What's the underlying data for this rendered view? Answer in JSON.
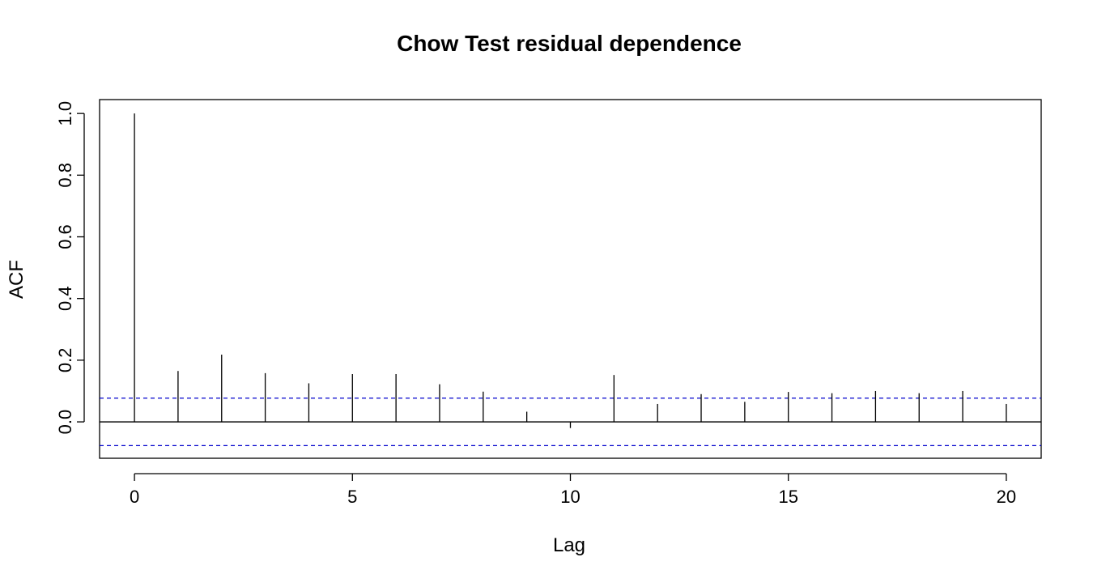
{
  "chart_data": {
    "type": "bar",
    "title": "Chow Test residual dependence",
    "xlabel": "Lag",
    "ylabel": "ACF",
    "x": [
      0,
      1,
      2,
      3,
      4,
      5,
      6,
      7,
      8,
      9,
      10,
      11,
      12,
      13,
      14,
      15,
      16,
      17,
      18,
      19,
      20
    ],
    "values": [
      1.0,
      0.165,
      0.218,
      0.158,
      0.125,
      0.155,
      0.155,
      0.122,
      0.098,
      0.033,
      -0.02,
      0.152,
      0.058,
      0.09,
      0.065,
      0.097,
      0.093,
      0.1,
      0.093,
      0.1,
      0.058
    ],
    "xlim": [
      -0.8,
      20.8
    ],
    "ylim": [
      -0.118,
      1.045
    ],
    "x_ticks": [
      0,
      5,
      10,
      15,
      20
    ],
    "x_tick_labels": [
      "0",
      "5",
      "10",
      "15",
      "20"
    ],
    "y_ticks": [
      0.0,
      0.2,
      0.4,
      0.6,
      0.8,
      1.0
    ],
    "y_tick_labels": [
      "0.0",
      "0.2",
      "0.4",
      "0.6",
      "0.8",
      "1.0"
    ],
    "confidence_bounds": [
      0.077,
      -0.077
    ],
    "confidence_color": "#0000cc",
    "bar_color": "#000000",
    "grid": false,
    "legend": "none"
  }
}
